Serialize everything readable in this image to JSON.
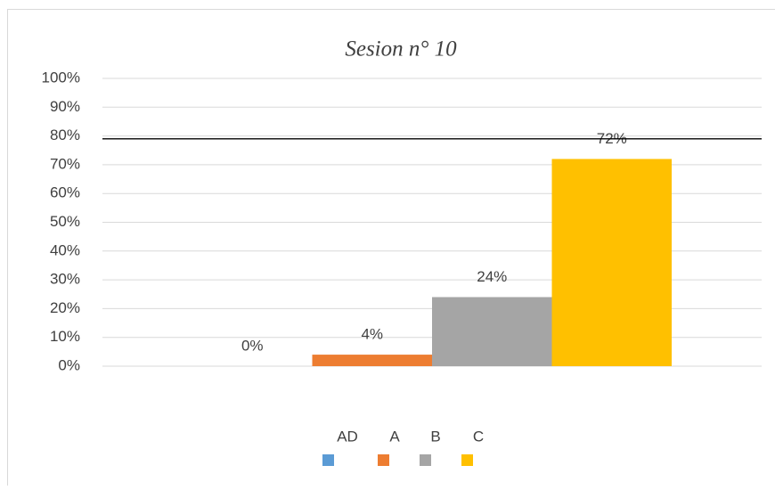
{
  "chart_data": {
    "type": "bar",
    "title": "Sesion n° 10",
    "series": [
      {
        "name": "AD",
        "color": "#5b9bd5",
        "values": [
          0
        ],
        "value_labels": [
          "0%"
        ]
      },
      {
        "name": "A",
        "color": "#ed7d31",
        "values": [
          4
        ],
        "value_labels": [
          "4%"
        ]
      },
      {
        "name": "B",
        "color": "#a5a5a5",
        "values": [
          24
        ],
        "value_labels": [
          "24%"
        ]
      },
      {
        "name": "C",
        "color": "#ffc000",
        "values": [
          72
        ],
        "value_labels": [
          "72%"
        ]
      }
    ],
    "ylim": [
      0,
      100
    ],
    "yticks": [
      {
        "value": 0,
        "label": "0%"
      },
      {
        "value": 10,
        "label": "10%"
      },
      {
        "value": 20,
        "label": "20%"
      },
      {
        "value": 30,
        "label": "30%"
      },
      {
        "value": 40,
        "label": "40%"
      },
      {
        "value": 50,
        "label": "50%"
      },
      {
        "value": 60,
        "label": "60%"
      },
      {
        "value": 70,
        "label": "70%"
      },
      {
        "value": 80,
        "label": "80%"
      },
      {
        "value": 90,
        "label": "90%"
      },
      {
        "value": 100,
        "label": "100%"
      }
    ],
    "reference_line": 79,
    "grid": true,
    "legend": "bottom"
  }
}
